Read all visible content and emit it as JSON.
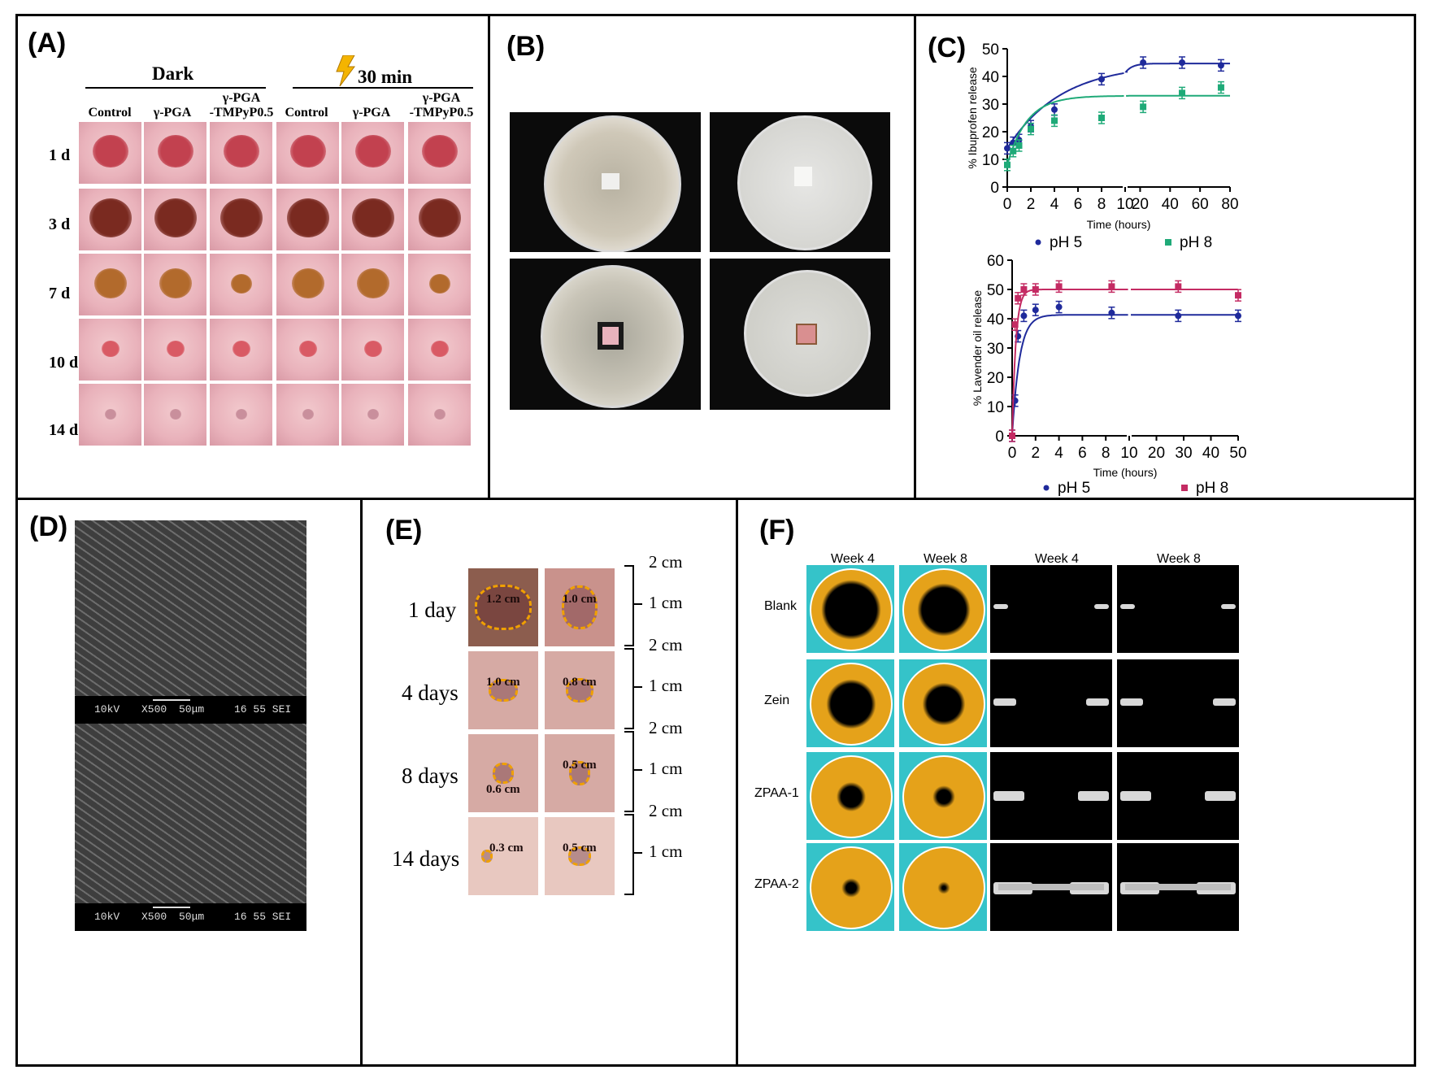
{
  "panels": {
    "A": {
      "label": "(A)",
      "groups": [
        "Dark",
        "30 min"
      ],
      "columns": [
        "Control",
        "γ-PGA",
        "γ-PGA\n-TMPyP0.5",
        "Control",
        "γ-PGA",
        "γ-PGA\n-TMPyP0.5"
      ],
      "rows": [
        "1 d",
        "3 d",
        "7 d",
        "10 d",
        "14 d"
      ]
    },
    "B": {
      "label": "(B)"
    },
    "C": {
      "label": "(C)",
      "top_legend": [
        "pH 5",
        "pH 8"
      ],
      "bottom_legend": [
        "pH 5",
        "pH 8"
      ]
    },
    "D": {
      "label": "(D)",
      "sem_bar": [
        "10kV",
        "X500",
        "50μm",
        "16 55 SEI"
      ]
    },
    "E": {
      "label": "(E)",
      "rows": [
        "1 day",
        "4 days",
        "8 days",
        "14 days"
      ],
      "scale": [
        "2 cm",
        "1 cm"
      ],
      "annotations": [
        "1.2 cm",
        "1.0 cm",
        "1.0 cm",
        "0.8 cm",
        "0.6 cm",
        "0.5 cm",
        "0.3 cm",
        "0.5 cm"
      ]
    },
    "F": {
      "label": "(F)",
      "columns": [
        "Week 4",
        "Week 8",
        "Week 4",
        "Week 8"
      ],
      "rows": [
        "Blank",
        "Zein",
        "ZPAA-1",
        "ZPAA-2"
      ]
    }
  },
  "chart_data": [
    {
      "type": "line",
      "title": "",
      "xlabel": "Time (hours)",
      "ylabel": "% Ibuprofen release",
      "ylim": [
        0,
        50
      ],
      "xticks": [
        "0",
        "2",
        "4",
        "6",
        "8",
        "10",
        "20",
        "40",
        "60",
        "80"
      ],
      "yticks": [
        0,
        10,
        20,
        30,
        40,
        50
      ],
      "series": [
        {
          "name": "pH 5",
          "color": "#1f2a9b",
          "x": [
            0,
            0.5,
            1,
            2,
            4,
            8,
            22,
            48,
            74
          ],
          "y": [
            14,
            16,
            17,
            22,
            28,
            39,
            45,
            45,
            44
          ]
        },
        {
          "name": "pH 8",
          "color": "#1faa78",
          "x": [
            0,
            0.5,
            1,
            2,
            4,
            8,
            22,
            48,
            74
          ],
          "y": [
            8,
            13,
            15,
            21,
            24,
            25,
            29,
            34,
            36
          ]
        }
      ]
    },
    {
      "type": "line",
      "title": "",
      "xlabel": "Time (hours)",
      "ylabel": "% Lavender oil release",
      "ylim": [
        0,
        60
      ],
      "xticks": [
        "0",
        "2",
        "4",
        "6",
        "8",
        "10",
        "20",
        "30",
        "40",
        "50"
      ],
      "yticks": [
        0,
        10,
        20,
        30,
        40,
        50,
        60
      ],
      "series": [
        {
          "name": "pH 5",
          "color": "#1f2a9b",
          "x": [
            0,
            0.25,
            0.5,
            1,
            2,
            4,
            8.5,
            28,
            50
          ],
          "y": [
            0,
            12,
            34,
            41,
            43,
            44,
            42,
            41,
            41
          ]
        },
        {
          "name": "pH 8",
          "color": "#c42b63",
          "x": [
            0,
            0.25,
            0.5,
            1,
            2,
            4,
            8.5,
            28,
            50
          ],
          "y": [
            0,
            38,
            47,
            50,
            50,
            51,
            51,
            51,
            48
          ]
        }
      ]
    }
  ]
}
